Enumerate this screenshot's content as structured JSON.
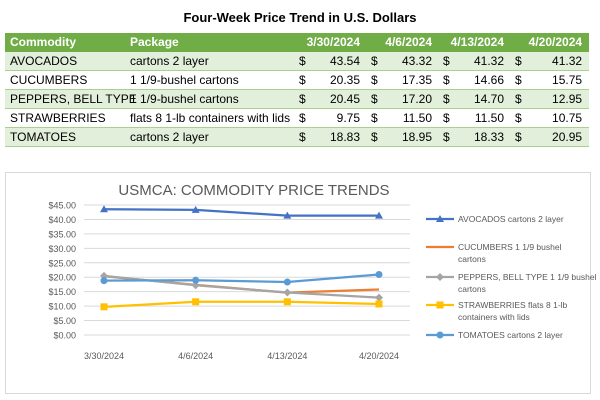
{
  "table": {
    "title": "Four-Week Price Trend in U.S. Dollars",
    "headers": {
      "commodity": "Commodity",
      "package": "Package",
      "dates": [
        "3/30/2024",
        "4/6/2024",
        "4/13/2024",
        "4/20/2024"
      ]
    },
    "currency_symbol": "$",
    "rows": [
      {
        "commodity": "AVOCADOS",
        "package": "cartons 2 layer",
        "prices": [
          "43.54",
          "43.32",
          "41.32",
          "41.32"
        ]
      },
      {
        "commodity": "CUCUMBERS",
        "package": "1 1/9-bushel cartons",
        "prices": [
          "20.35",
          "17.35",
          "14.66",
          "15.75"
        ]
      },
      {
        "commodity": "PEPPERS, BELL TYPE",
        "package": "1 1/9-bushel cartons",
        "prices": [
          "20.45",
          "17.20",
          "14.70",
          "12.95"
        ]
      },
      {
        "commodity": "STRAWBERRIES",
        "package": "flats 8 1-lb containers with lids",
        "prices": [
          "9.75",
          "11.50",
          "11.50",
          "10.75"
        ]
      },
      {
        "commodity": "TOMATOES",
        "package": "cartons 2 layer",
        "prices": [
          "18.83",
          "18.95",
          "18.33",
          "20.95"
        ]
      }
    ],
    "colors": {
      "header": "#70AD47",
      "band": "#E2EFDA"
    }
  },
  "chart_data": {
    "type": "line",
    "title": "USMCA: COMMODITY PRICE TRENDS",
    "categories": [
      "3/30/2024",
      "4/6/2024",
      "4/13/2024",
      "4/20/2024"
    ],
    "ylim": [
      0,
      45
    ],
    "yticks": [
      0,
      5,
      10,
      15,
      20,
      25,
      30,
      35,
      40,
      45
    ],
    "ytick_labels": [
      "$0.00",
      "$5.00",
      "$10.00",
      "$15.00",
      "$20.00",
      "$25.00",
      "$30.00",
      "$35.00",
      "$40.00",
      "$45.00"
    ],
    "grid": true,
    "legend_position": "right",
    "series": [
      {
        "name": "AVOCADOS cartons 2 layer",
        "legend_lines": [
          "AVOCADOS cartons 2 layer"
        ],
        "values": [
          43.54,
          43.32,
          41.32,
          41.32
        ],
        "color": "#4472C4",
        "marker": "triangle"
      },
      {
        "name": "CUCUMBERS 1 1/9 bushel cartons",
        "legend_lines": [
          "CUCUMBERS 1 1/9 bushel",
          "cartons"
        ],
        "values": [
          20.35,
          17.35,
          14.66,
          15.75
        ],
        "color": "#ED7D31",
        "marker": "none"
      },
      {
        "name": "PEPPERS, BELL TYPE 1 1/9 bushel cartons",
        "legend_lines": [
          "PEPPERS, BELL TYPE 1 1/9 bushel",
          "cartons"
        ],
        "values": [
          20.45,
          17.2,
          14.7,
          12.95
        ],
        "color": "#A5A5A5",
        "marker": "diamond"
      },
      {
        "name": "STRAWBERRIES flats 8 1-lb containers with lids",
        "legend_lines": [
          "STRAWBERRIES flats 8 1-lb",
          "containers with lids"
        ],
        "values": [
          9.75,
          11.5,
          11.5,
          10.75
        ],
        "color": "#FFC000",
        "marker": "square"
      },
      {
        "name": "TOMATOES cartons 2 layer",
        "legend_lines": [
          "TOMATOES cartons 2 layer"
        ],
        "values": [
          18.83,
          18.95,
          18.33,
          20.95
        ],
        "color": "#5B9BD5",
        "marker": "circle"
      }
    ]
  }
}
